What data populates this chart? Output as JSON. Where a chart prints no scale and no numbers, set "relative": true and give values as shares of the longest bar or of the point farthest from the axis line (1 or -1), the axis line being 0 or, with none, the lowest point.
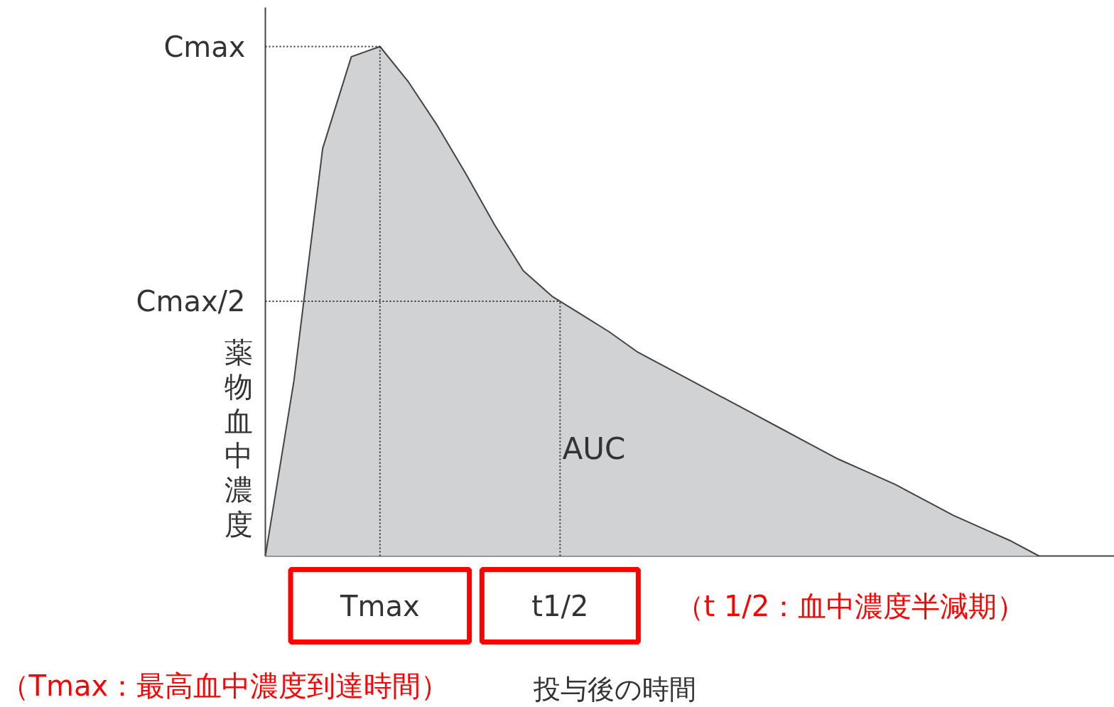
{
  "chart_data": {
    "type": "area",
    "relative": true,
    "xlabel": "投与後の時間",
    "ylabel": "薬物血中濃度",
    "categories": [
      null,
      null,
      null,
      null,
      null,
      null,
      null,
      null,
      null,
      null,
      null,
      null,
      null,
      null,
      null,
      null,
      null,
      null,
      null,
      null,
      null,
      null,
      null,
      null,
      null,
      null,
      null,
      null
    ],
    "series": [
      {
        "color": "#d1d2d4",
        "values": [
          0,
          0.345,
          0.8,
          0.98,
          1.0,
          0.93,
          0.845,
          0.75,
          0.65,
          0.56,
          0.51,
          0.475,
          0.44,
          0.4,
          0.37,
          0.34,
          0.31,
          0.28,
          0.25,
          0.22,
          0.19,
          0.165,
          0.14,
          0.11,
          0.08,
          0.055,
          0.03,
          0
        ]
      }
    ],
    "ref_lines": [
      {
        "axis": "y",
        "value": 1.0,
        "label": "Cmax",
        "line_style": "dotted"
      },
      {
        "axis": "y",
        "value": 0.5,
        "label": "Cmax/2",
        "line_style": "dotted"
      }
    ],
    "annotations": [
      "Tmax",
      "t1/2",
      "AUC",
      "（t 1/2：血中濃度半減期）",
      "（Tmax：最高血中濃度到達時間）"
    ],
    "line_style": "solid"
  }
}
